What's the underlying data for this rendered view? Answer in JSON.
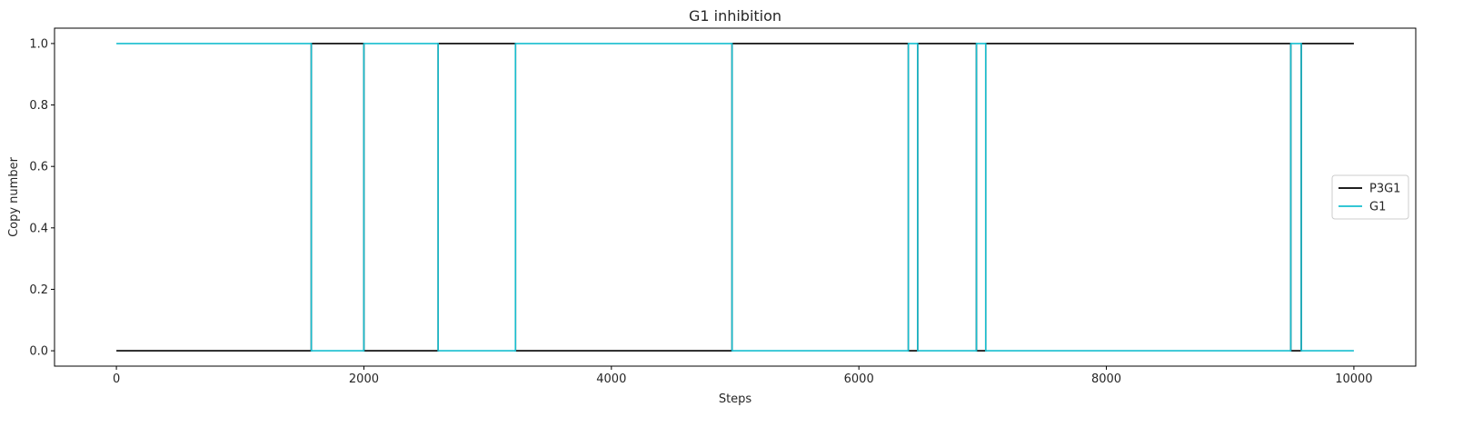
{
  "chart_data": {
    "type": "line",
    "title": "G1 inhibition",
    "xlabel": "Steps",
    "ylabel": "Copy number",
    "xlim": [
      -500,
      10500
    ],
    "ylim": [
      -0.05,
      1.05
    ],
    "xticks": [
      0,
      2000,
      4000,
      6000,
      8000,
      10000
    ],
    "xtick_labels": [
      "0",
      "2000",
      "4000",
      "6000",
      "8000",
      "10000"
    ],
    "yticks": [
      0.0,
      0.2,
      0.4,
      0.6,
      0.8,
      1.0
    ],
    "ytick_labels": [
      "0.0",
      "0.2",
      "0.4",
      "0.6",
      "0.8",
      "1.0"
    ],
    "grid": false,
    "legend_position": "center-right",
    "series": [
      {
        "name": "P3G1",
        "color": "#000000",
        "x": [
          0,
          1575,
          1575,
          2000,
          2000,
          2600,
          2600,
          3225,
          3225,
          4975,
          4975,
          6400,
          6400,
          6475,
          6475,
          6950,
          6950,
          7025,
          7025,
          9490,
          9490,
          9575,
          9575,
          10000
        ],
        "y": [
          0,
          0,
          1,
          1,
          0,
          0,
          1,
          1,
          0,
          0,
          1,
          1,
          0,
          0,
          1,
          1,
          0,
          0,
          1,
          1,
          0,
          0,
          1,
          1
        ]
      },
      {
        "name": "G1",
        "color": "#17becf",
        "x": [
          0,
          1575,
          1575,
          2000,
          2000,
          2600,
          2600,
          3225,
          3225,
          4975,
          4975,
          6400,
          6400,
          6475,
          6475,
          6950,
          6950,
          7025,
          7025,
          9490,
          9490,
          9575,
          9575,
          10000
        ],
        "y": [
          1,
          1,
          0,
          0,
          1,
          1,
          0,
          0,
          1,
          1,
          0,
          0,
          1,
          1,
          0,
          0,
          1,
          1,
          0,
          0,
          1,
          1,
          0,
          0
        ]
      }
    ]
  }
}
